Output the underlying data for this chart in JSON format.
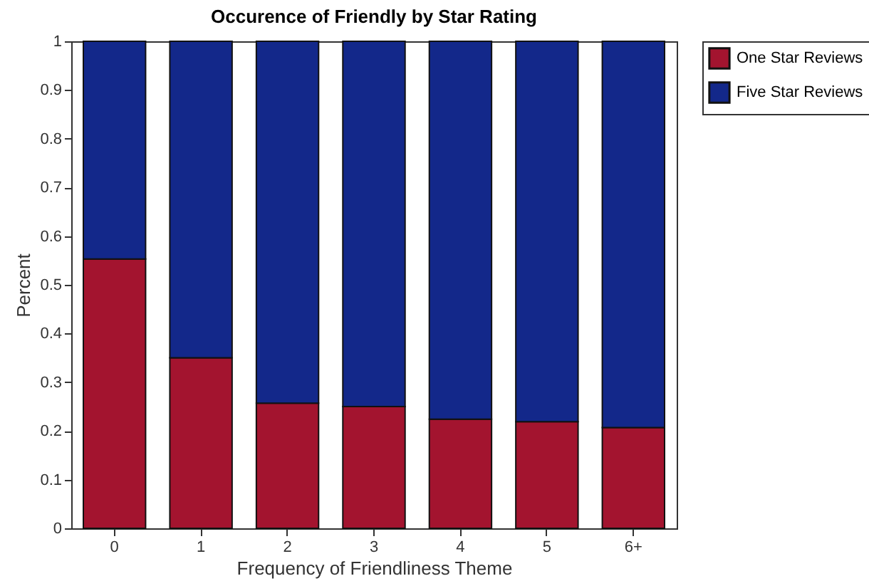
{
  "chart_data": {
    "type": "bar",
    "title": "Occurence of Friendly by Star Rating",
    "xlabel": "Frequency of Friendliness Theme",
    "ylabel": "Percent",
    "categories": [
      "0",
      "1",
      "2",
      "3",
      "4",
      "5",
      "6+"
    ],
    "series": [
      {
        "name": "One Star Reviews",
        "color": "#a3142f",
        "values": [
          0.553,
          0.35,
          0.257,
          0.25,
          0.224,
          0.219,
          0.207
        ]
      },
      {
        "name": "Five Star Reviews",
        "color": "#13288a",
        "values": [
          0.447,
          0.65,
          0.743,
          0.75,
          0.776,
          0.781,
          0.793
        ]
      }
    ],
    "stacked": true,
    "ylim": [
      0,
      1
    ],
    "yticks": [
      0,
      0.1,
      0.2,
      0.3,
      0.4,
      0.5,
      0.6,
      0.7,
      0.8,
      0.9,
      1
    ],
    "legend": "top right",
    "grid": false
  }
}
